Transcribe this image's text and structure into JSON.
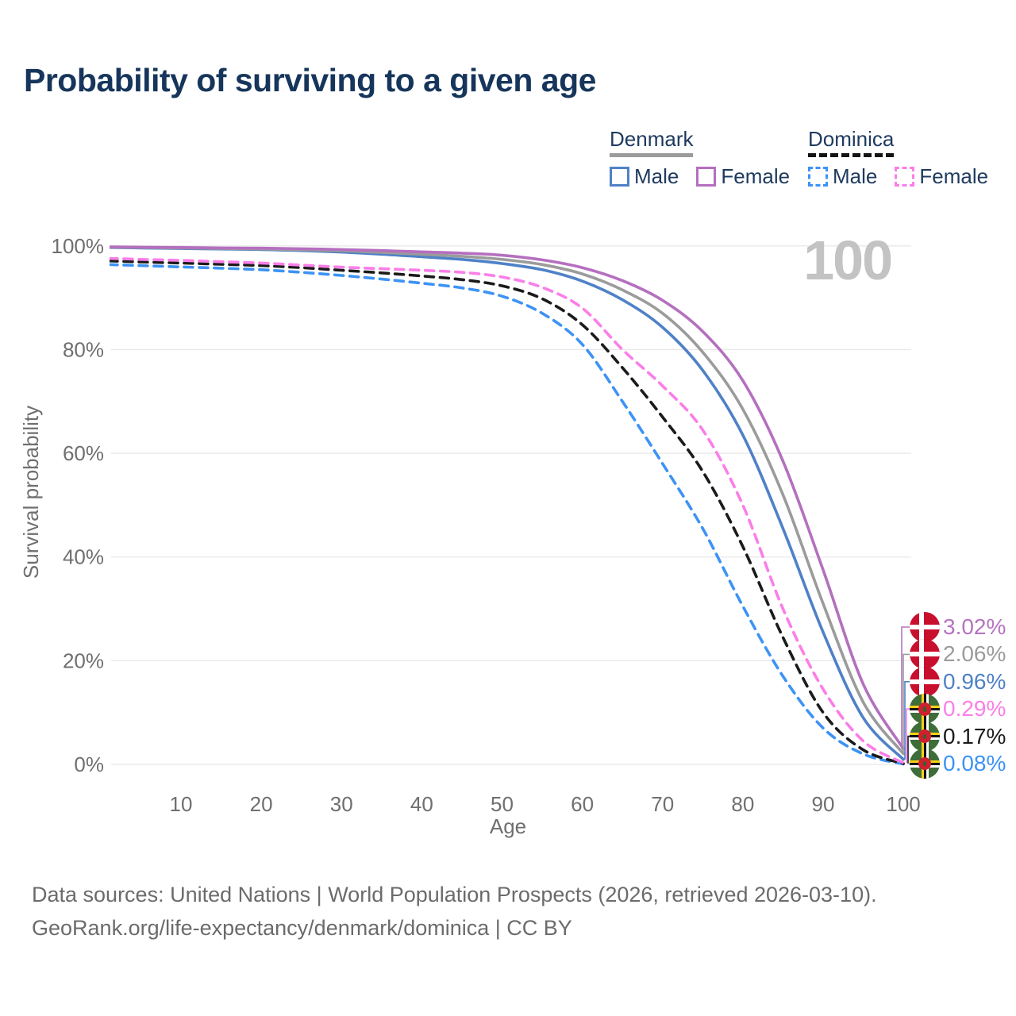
{
  "title": "Probability of surviving to a given age",
  "watermark": "100",
  "legend": {
    "groups": [
      {
        "country": "Denmark",
        "line_style": "solid",
        "underline_color": "#9b9b9b",
        "items": [
          {
            "label": "Male",
            "color": "#4f81c7",
            "dashed": false
          },
          {
            "label": "Female",
            "color": "#b56fbf",
            "dashed": false
          }
        ]
      },
      {
        "country": "Dominica",
        "line_style": "dashed",
        "underline_color": "#141414",
        "items": [
          {
            "label": "Male",
            "color": "#3d93f5",
            "dashed": true
          },
          {
            "label": "Female",
            "color": "#fb7ee8",
            "dashed": true
          }
        ]
      }
    ]
  },
  "chart_data": {
    "type": "line",
    "title": "Probability of surviving to a given age",
    "xlabel": "Age",
    "ylabel": "Survival probability",
    "xlim": [
      1,
      101
    ],
    "ylim": [
      0,
      100
    ],
    "grid": "horizontal",
    "xticks": [
      10,
      20,
      30,
      40,
      50,
      60,
      70,
      80,
      90,
      100
    ],
    "yticks": [
      0,
      20,
      40,
      60,
      80,
      100
    ],
    "ytick_suffix": "%",
    "series": [
      {
        "name": "Dominica Male",
        "country": "Dominica",
        "sex": "Male",
        "color": "#3d93f5",
        "dashed": true,
        "points": [
          [
            1,
            96.4
          ],
          [
            5,
            96.2
          ],
          [
            10,
            95.95
          ],
          [
            15,
            95.7
          ],
          [
            20,
            95.4
          ],
          [
            25,
            94.9
          ],
          [
            30,
            94.3
          ],
          [
            35,
            93.6
          ],
          [
            40,
            92.8
          ],
          [
            45,
            91.9
          ],
          [
            50,
            90.3
          ],
          [
            55,
            87.0
          ],
          [
            60,
            81.0
          ],
          [
            65,
            70.0
          ],
          [
            70,
            58.0
          ],
          [
            75,
            45.5
          ],
          [
            80,
            30.5
          ],
          [
            85,
            17.0
          ],
          [
            90,
            7.0
          ],
          [
            95,
            2.0
          ],
          [
            100,
            0.08
          ]
        ]
      },
      {
        "name": "Dominica (both sexes)",
        "country": "Dominica",
        "sex": "Both",
        "color": "#1b1b1b",
        "dashed": true,
        "points": [
          [
            1,
            97.1
          ],
          [
            5,
            96.9
          ],
          [
            10,
            96.7
          ],
          [
            15,
            96.45
          ],
          [
            20,
            96.2
          ],
          [
            25,
            95.8
          ],
          [
            30,
            95.3
          ],
          [
            35,
            94.8
          ],
          [
            40,
            94.2
          ],
          [
            45,
            93.5
          ],
          [
            50,
            92.3
          ],
          [
            55,
            89.8
          ],
          [
            60,
            84.8
          ],
          [
            65,
            76.5
          ],
          [
            70,
            67.0
          ],
          [
            75,
            56.5
          ],
          [
            80,
            42.0
          ],
          [
            85,
            24.5
          ],
          [
            90,
            10.0
          ],
          [
            95,
            2.8
          ],
          [
            100,
            0.17
          ]
        ]
      },
      {
        "name": "Dominica Female",
        "country": "Dominica",
        "sex": "Female",
        "color": "#fb7ee8",
        "dashed": true,
        "points": [
          [
            1,
            97.6
          ],
          [
            5,
            97.4
          ],
          [
            10,
            97.2
          ],
          [
            15,
            96.95
          ],
          [
            20,
            96.7
          ],
          [
            25,
            96.3
          ],
          [
            30,
            95.9
          ],
          [
            35,
            95.6
          ],
          [
            40,
            95.3
          ],
          [
            45,
            94.9
          ],
          [
            50,
            94.0
          ],
          [
            55,
            92.0
          ],
          [
            60,
            88.0
          ],
          [
            65,
            80.0
          ],
          [
            70,
            73.0
          ],
          [
            75,
            64.5
          ],
          [
            80,
            50.0
          ],
          [
            85,
            30.0
          ],
          [
            90,
            14.5
          ],
          [
            95,
            4.5
          ],
          [
            100,
            0.29
          ]
        ]
      },
      {
        "name": "Denmark Male",
        "country": "Denmark",
        "sex": "Male",
        "color": "#4f81c7",
        "dashed": false,
        "points": [
          [
            1,
            99.7
          ],
          [
            5,
            99.6
          ],
          [
            10,
            99.5
          ],
          [
            15,
            99.4
          ],
          [
            20,
            99.3
          ],
          [
            25,
            99.1
          ],
          [
            30,
            98.8
          ],
          [
            35,
            98.4
          ],
          [
            40,
            97.9
          ],
          [
            45,
            97.4
          ],
          [
            50,
            96.6
          ],
          [
            55,
            95.4
          ],
          [
            60,
            93.2
          ],
          [
            65,
            89.6
          ],
          [
            70,
            84.3
          ],
          [
            75,
            76.0
          ],
          [
            80,
            63.5
          ],
          [
            85,
            45.5
          ],
          [
            90,
            25.5
          ],
          [
            95,
            9.0
          ],
          [
            100,
            0.96
          ]
        ]
      },
      {
        "name": "Denmark (both sexes)",
        "country": "Denmark",
        "sex": "Both",
        "color": "#9b9b9b",
        "dashed": false,
        "points": [
          [
            1,
            99.75
          ],
          [
            5,
            99.7
          ],
          [
            10,
            99.6
          ],
          [
            15,
            99.5
          ],
          [
            20,
            99.4
          ],
          [
            25,
            99.25
          ],
          [
            30,
            99.05
          ],
          [
            35,
            98.75
          ],
          [
            40,
            98.4
          ],
          [
            45,
            98.0
          ],
          [
            50,
            97.4
          ],
          [
            55,
            96.4
          ],
          [
            60,
            94.6
          ],
          [
            65,
            91.5
          ],
          [
            70,
            87.0
          ],
          [
            75,
            79.5
          ],
          [
            80,
            68.5
          ],
          [
            85,
            52.0
          ],
          [
            90,
            31.0
          ],
          [
            95,
            12.0
          ],
          [
            100,
            2.06
          ]
        ]
      },
      {
        "name": "Denmark Female",
        "country": "Denmark",
        "sex": "Female",
        "color": "#b56fbf",
        "dashed": false,
        "points": [
          [
            1,
            99.8
          ],
          [
            5,
            99.75
          ],
          [
            10,
            99.7
          ],
          [
            15,
            99.6
          ],
          [
            20,
            99.55
          ],
          [
            25,
            99.45
          ],
          [
            30,
            99.3
          ],
          [
            35,
            99.1
          ],
          [
            40,
            98.85
          ],
          [
            45,
            98.6
          ],
          [
            50,
            98.2
          ],
          [
            55,
            97.3
          ],
          [
            60,
            95.8
          ],
          [
            65,
            93.3
          ],
          [
            70,
            89.5
          ],
          [
            75,
            83.5
          ],
          [
            80,
            74.0
          ],
          [
            85,
            58.5
          ],
          [
            90,
            37.5
          ],
          [
            95,
            15.5
          ],
          [
            100,
            3.02
          ]
        ]
      }
    ],
    "end_labels": [
      {
        "text": "3.02%",
        "value": 3.02,
        "country": "Denmark",
        "sex": "Female",
        "flag": "dk",
        "color": "#b573c1"
      },
      {
        "text": "2.06%",
        "value": 2.06,
        "country": "Denmark",
        "sex": "Both",
        "flag": "dk",
        "color": "#9b9b9b"
      },
      {
        "text": "0.96%",
        "value": 0.96,
        "country": "Denmark",
        "sex": "Male",
        "flag": "dk",
        "color": "#4f81c7"
      },
      {
        "text": "0.29%",
        "value": 0.29,
        "country": "Dominica",
        "sex": "Female",
        "flag": "dm",
        "color": "#fb7ee8"
      },
      {
        "text": "0.17%",
        "value": 0.17,
        "country": "Dominica",
        "sex": "Both",
        "flag": "dm",
        "color": "#1b1b1b"
      },
      {
        "text": "0.08%",
        "value": 0.08,
        "country": "Dominica",
        "sex": "Male",
        "flag": "dm",
        "color": "#3d93f5"
      }
    ],
    "annotation": {
      "watermark": "100"
    }
  },
  "footer": {
    "line1": "Data sources: United Nations | World Population Prospects (2026, retrieved 2026-03-10).",
    "line2": "GeoRank.org/life-expectancy/denmark/dominica | CC BY"
  }
}
